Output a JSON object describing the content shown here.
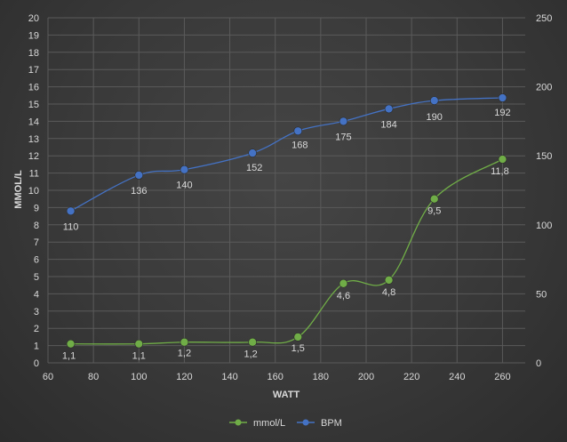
{
  "chart_data": {
    "type": "line",
    "xlabel": "WATT",
    "ylabel": "MMOL/L",
    "xlim": [
      60,
      270
    ],
    "x_ticks": [
      60,
      80,
      100,
      120,
      140,
      160,
      180,
      200,
      220,
      240,
      260
    ],
    "ylim": [
      0,
      20
    ],
    "y_ticks": [
      0,
      1,
      2,
      3,
      4,
      5,
      6,
      7,
      8,
      9,
      10,
      11,
      12,
      13,
      14,
      15,
      16,
      17,
      18,
      19,
      20
    ],
    "y2lim": [
      0,
      250
    ],
    "y2_ticks": [
      0,
      50,
      100,
      150,
      200,
      250
    ],
    "grid": true,
    "legend_position": "bottom",
    "series": [
      {
        "name": "mmol/L",
        "axis": "left",
        "color": "#70ad47",
        "x": [
          70,
          100,
          120,
          150,
          170,
          190,
          210,
          230,
          260
        ],
        "values": [
          1.1,
          1.1,
          1.2,
          1.2,
          1.5,
          4.6,
          4.8,
          9.5,
          11.8
        ],
        "labels": [
          "1,1",
          "1,1",
          "1,2",
          "1,2",
          "1,5",
          "4,6",
          "4,8",
          "9,5",
          "11,8"
        ]
      },
      {
        "name": "BPM",
        "axis": "right",
        "color": "#4472c4",
        "x": [
          70,
          100,
          120,
          150,
          170,
          190,
          210,
          230,
          260
        ],
        "values": [
          110,
          136,
          140,
          152,
          168,
          175,
          184,
          190,
          192
        ],
        "labels": [
          "110",
          "136",
          "140",
          "152",
          "168",
          "175",
          "184",
          "190",
          "192"
        ]
      }
    ]
  }
}
